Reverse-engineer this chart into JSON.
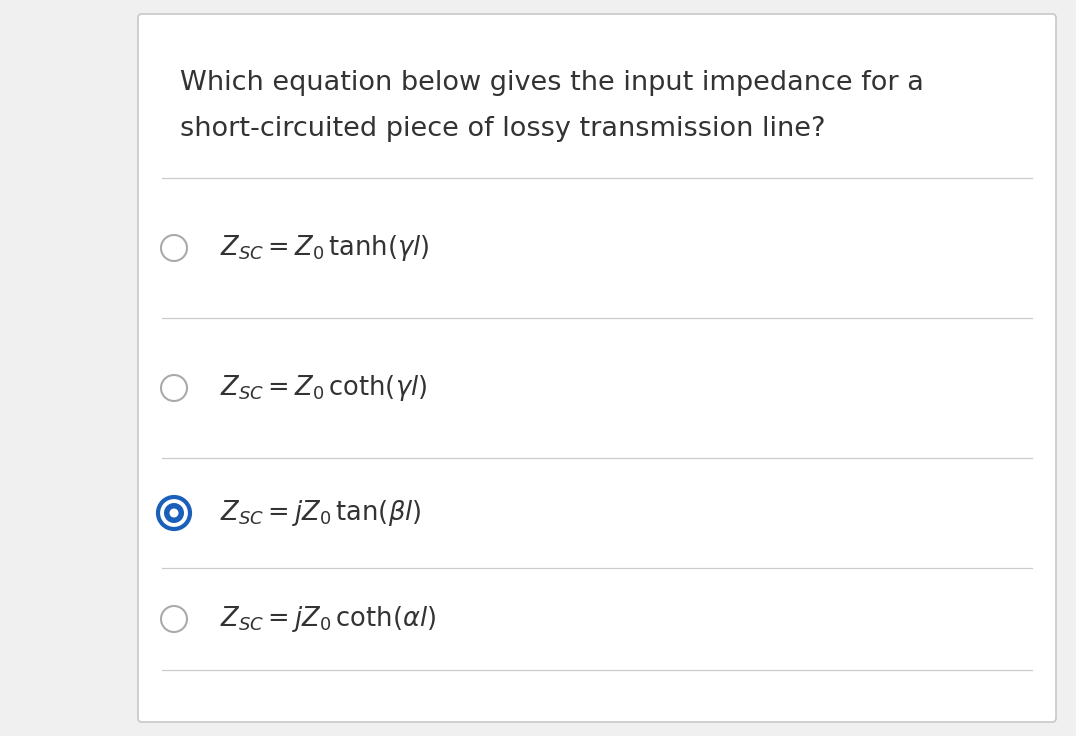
{
  "background_color": "#f0f0f0",
  "card_color": "#ffffff",
  "card_border_color": "#c8c8c8",
  "title_line1": "Which equation below gives the input impedance for a",
  "title_line2": "short-circuited piece of lossy transmission line?",
  "title_color": "#333333",
  "title_fontsize": 19.5,
  "divider_color": "#cccccc",
  "option_fontsize": 18.5,
  "option_text_color": "#333333",
  "selected_blue": "#1a5fba",
  "unselected_gray": "#aaaaaa",
  "options": [
    {
      "selected": false
    },
    {
      "selected": false
    },
    {
      "selected": true
    },
    {
      "selected": false
    }
  ]
}
